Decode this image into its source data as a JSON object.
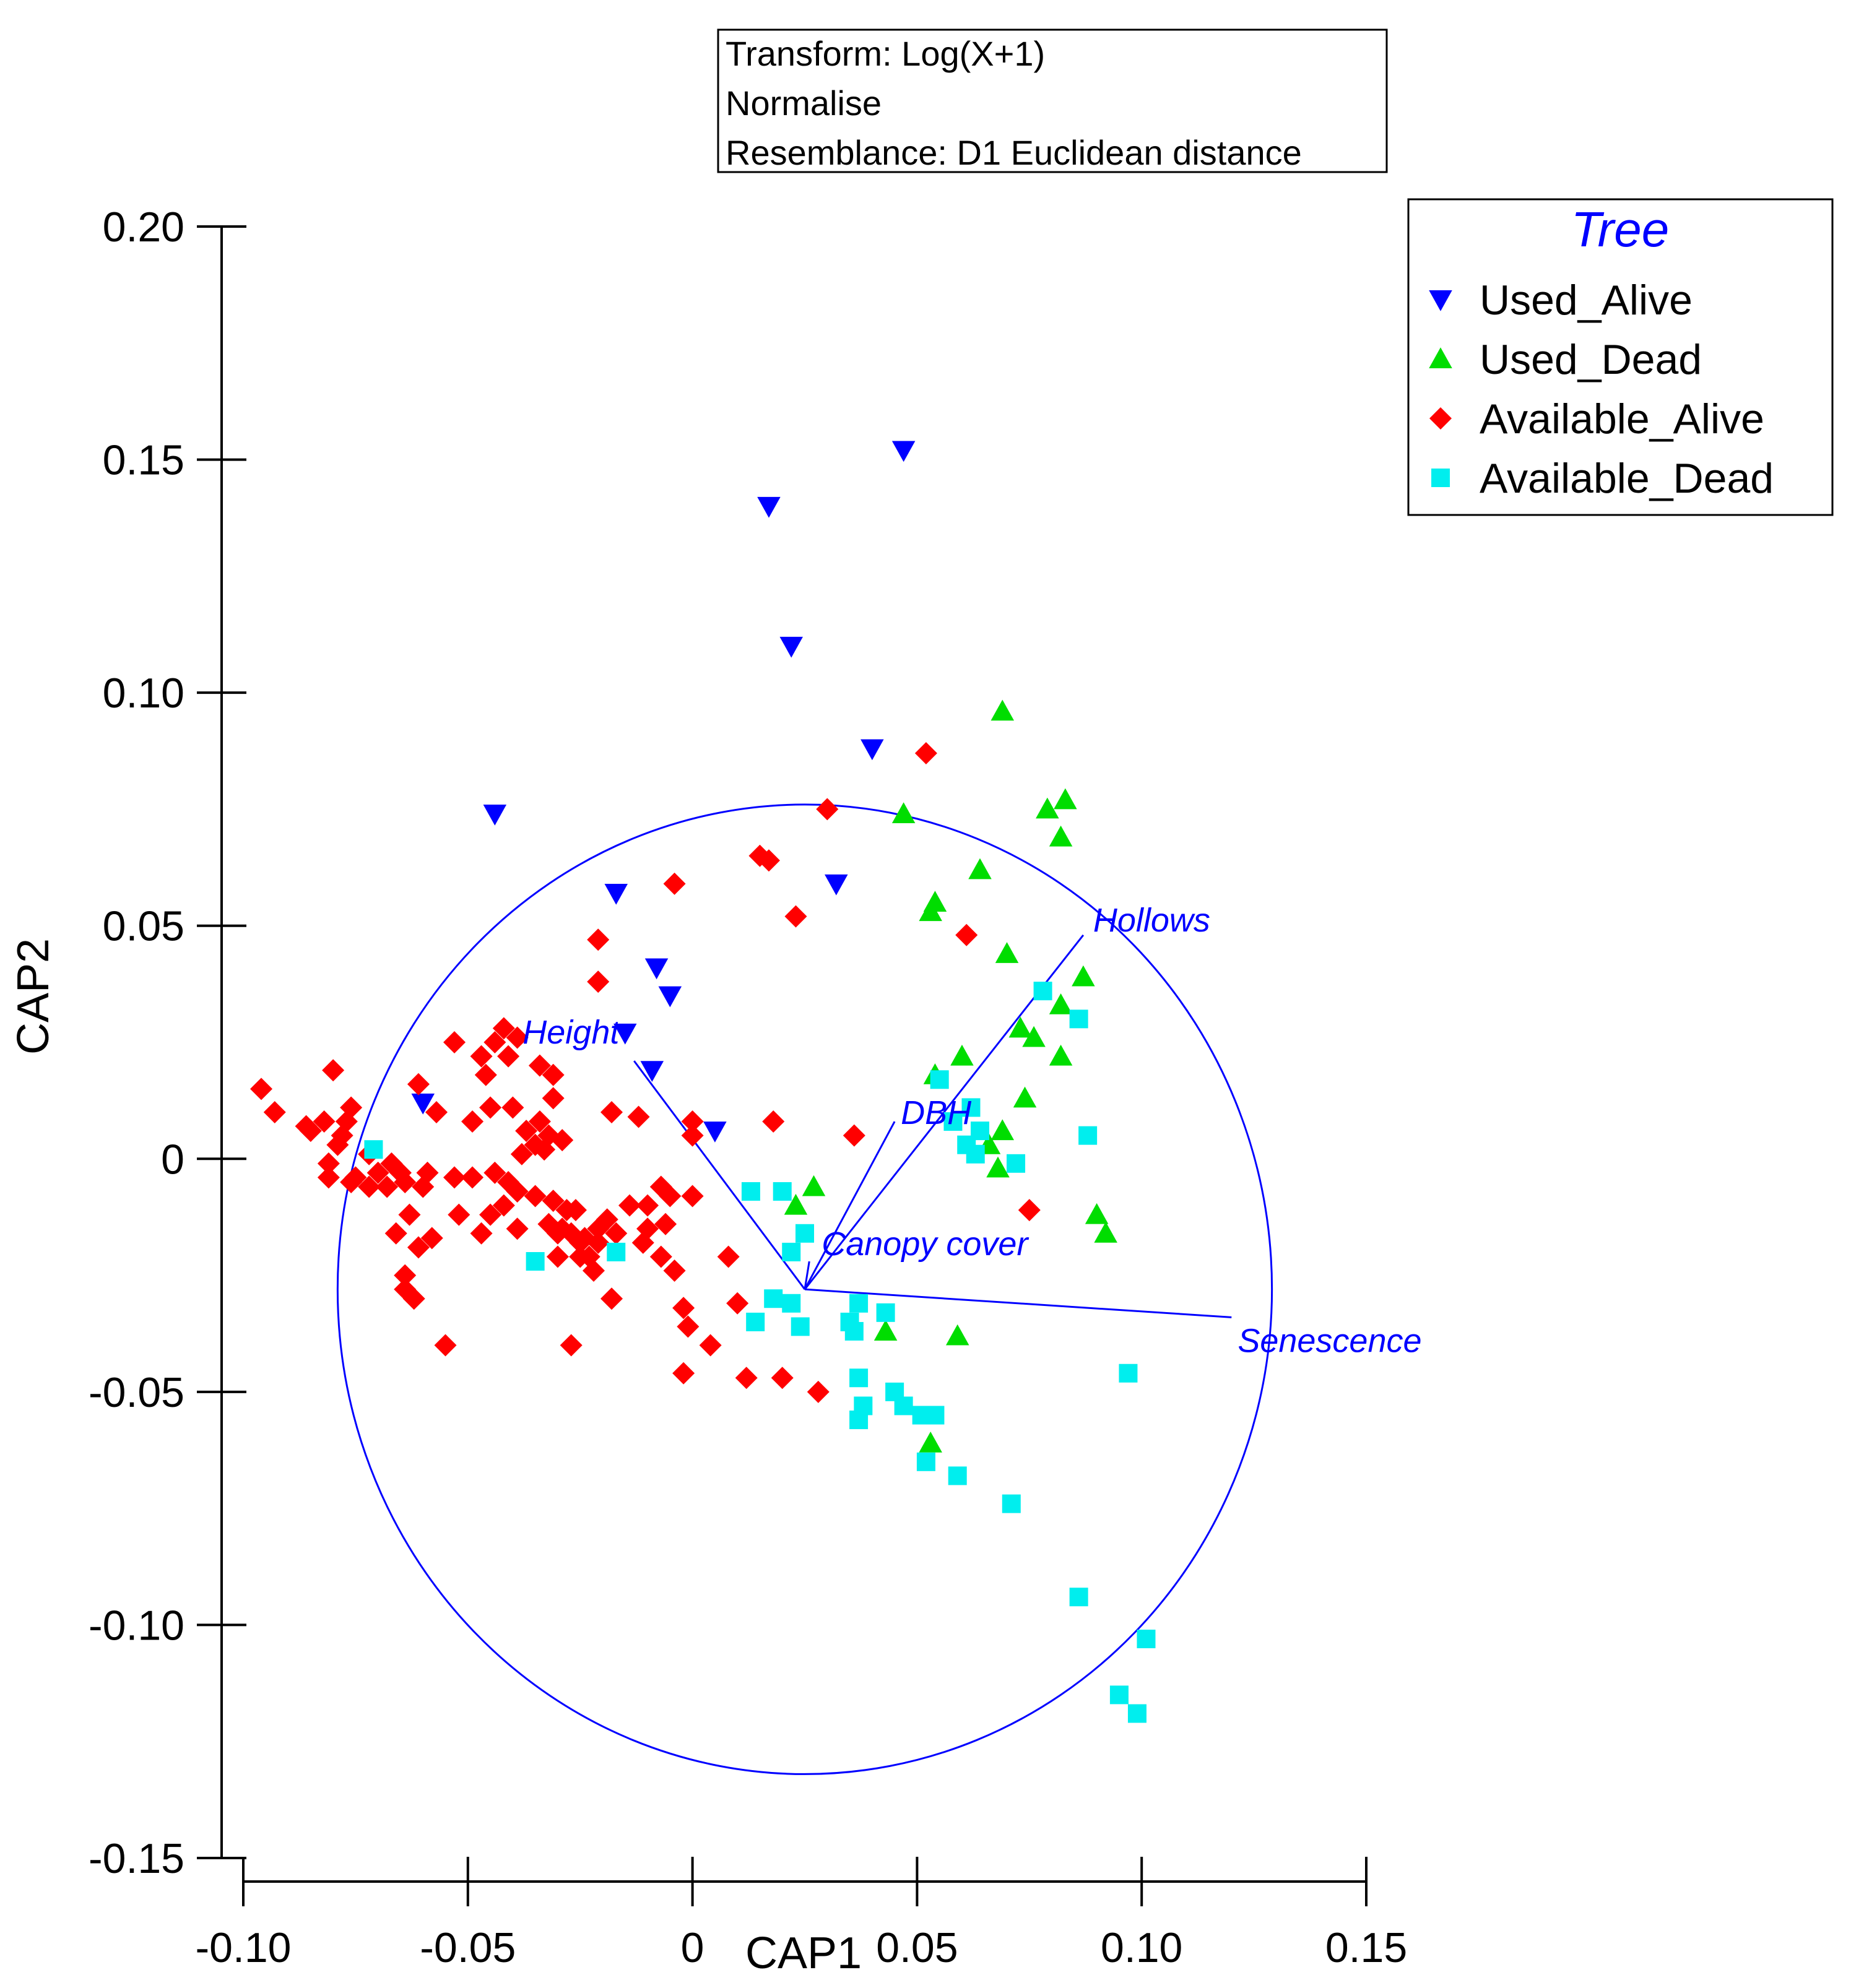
{
  "chart_data": {
    "type": "scatter",
    "xlabel": "CAP1",
    "ylabel": "CAP2",
    "xlim": [
      -0.1,
      0.15
    ],
    "ylim": [
      -0.15,
      0.2
    ],
    "x_ticks": [
      -0.1,
      -0.05,
      0,
      0.05,
      0.1,
      0.15
    ],
    "x_tick_labels": [
      "-0.10",
      "-0.05",
      "0",
      "0.05",
      "0.10",
      "0.15"
    ],
    "y_ticks": [
      0.2,
      0.15,
      0.1,
      0.05,
      0,
      -0.05,
      -0.1,
      -0.15
    ],
    "y_tick_labels": [
      "0.20",
      "0.15",
      "0.10",
      "0.05",
      "0",
      "-0.05",
      "-0.10",
      "-0.15"
    ],
    "info_box": [
      "Transform: Log(X+1)",
      "Normalise",
      "Resemblance: D1 Euclidean distance"
    ],
    "legend": {
      "title": "Tree",
      "title_color": "#0000ff",
      "position": "top-right"
    },
    "series": [
      {
        "name": "Used_Alive",
        "marker": "triangle-down",
        "color": "#0000ff",
        "points": [
          [
            0.047,
            0.152
          ],
          [
            0.017,
            0.14
          ],
          [
            0.022,
            0.11
          ],
          [
            0.04,
            0.088
          ],
          [
            -0.044,
            0.074
          ],
          [
            0.032,
            0.059
          ],
          [
            -0.017,
            0.057
          ],
          [
            -0.008,
            0.041
          ],
          [
            -0.005,
            0.035
          ],
          [
            -0.015,
            0.027
          ],
          [
            -0.009,
            0.019
          ],
          [
            -0.06,
            0.012
          ],
          [
            0.005,
            0.006
          ]
        ]
      },
      {
        "name": "Used_Dead",
        "marker": "triangle-up",
        "color": "#00dd00",
        "points": [
          [
            0.069,
            0.096
          ],
          [
            0.083,
            0.077
          ],
          [
            0.079,
            0.075
          ],
          [
            0.047,
            0.074
          ],
          [
            0.082,
            0.069
          ],
          [
            0.064,
            0.062
          ],
          [
            0.054,
            0.055
          ],
          [
            0.053,
            0.053
          ],
          [
            0.07,
            0.044
          ],
          [
            0.087,
            0.039
          ],
          [
            0.082,
            0.033
          ],
          [
            0.073,
            0.028
          ],
          [
            0.076,
            0.026
          ],
          [
            0.082,
            0.022
          ],
          [
            0.06,
            0.022
          ],
          [
            0.054,
            0.018
          ],
          [
            0.074,
            0.013
          ],
          [
            0.069,
            0.006
          ],
          [
            0.066,
            0.003
          ],
          [
            0.068,
            -0.002
          ],
          [
            0.027,
            -0.006
          ],
          [
            0.023,
            -0.01
          ],
          [
            0.09,
            -0.012
          ],
          [
            0.092,
            -0.016
          ],
          [
            0.043,
            -0.037
          ],
          [
            0.059,
            -0.038
          ],
          [
            0.053,
            -0.061
          ]
        ]
      },
      {
        "name": "Available_Alive",
        "marker": "diamond",
        "color": "#ff0000",
        "points": [
          [
            0.052,
            0.087
          ],
          [
            0.03,
            0.075
          ],
          [
            0.015,
            0.065
          ],
          [
            0.017,
            0.064
          ],
          [
            -0.004,
            0.059
          ],
          [
            0.023,
            0.052
          ],
          [
            0.061,
            0.048
          ],
          [
            -0.021,
            0.047
          ],
          [
            -0.021,
            0.038
          ],
          [
            -0.042,
            0.028
          ],
          [
            -0.044,
            0.025
          ],
          [
            -0.039,
            0.026
          ],
          [
            -0.041,
            0.022
          ],
          [
            -0.053,
            0.025
          ],
          [
            -0.047,
            0.022
          ],
          [
            -0.034,
            0.02
          ],
          [
            -0.031,
            0.018
          ],
          [
            -0.046,
            0.018
          ],
          [
            -0.031,
            0.013
          ],
          [
            -0.034,
            0.008
          ],
          [
            -0.049,
            0.008
          ],
          [
            -0.061,
            0.016
          ],
          [
            -0.057,
            0.01
          ],
          [
            -0.045,
            0.011
          ],
          [
            -0.04,
            0.011
          ],
          [
            -0.037,
            0.006
          ],
          [
            -0.032,
            0.005
          ],
          [
            -0.033,
            0.002
          ],
          [
            -0.035,
            0.003
          ],
          [
            -0.029,
            0.004
          ],
          [
            -0.038,
            0.001
          ],
          [
            -0.018,
            0.01
          ],
          [
            -0.012,
            0.009
          ],
          [
            0.0,
            0.008
          ],
          [
            0.0,
            0.005
          ],
          [
            0.018,
            0.008
          ],
          [
            0.036,
            0.005
          ],
          [
            -0.096,
            0.015
          ],
          [
            -0.093,
            0.01
          ],
          [
            -0.08,
            0.019
          ],
          [
            -0.086,
            0.007
          ],
          [
            -0.082,
            0.008
          ],
          [
            -0.085,
            0.006
          ],
          [
            -0.077,
            0.008
          ],
          [
            -0.076,
            0.011
          ],
          [
            -0.078,
            0.005
          ],
          [
            -0.079,
            0.003
          ],
          [
            -0.081,
            -0.001
          ],
          [
            -0.075,
            -0.004
          ],
          [
            -0.072,
            0.001
          ],
          [
            -0.07,
            -0.003
          ],
          [
            -0.067,
            -0.001
          ],
          [
            -0.081,
            -0.004
          ],
          [
            -0.076,
            -0.005
          ],
          [
            -0.072,
            -0.006
          ],
          [
            -0.068,
            -0.006
          ],
          [
            -0.065,
            -0.003
          ],
          [
            -0.064,
            -0.005
          ],
          [
            -0.06,
            -0.006
          ],
          [
            -0.059,
            -0.003
          ],
          [
            -0.053,
            -0.004
          ],
          [
            -0.049,
            -0.004
          ],
          [
            -0.044,
            -0.003
          ],
          [
            -0.041,
            -0.005
          ],
          [
            -0.039,
            -0.007
          ],
          [
            -0.035,
            -0.008
          ],
          [
            -0.031,
            -0.009
          ],
          [
            -0.026,
            -0.011
          ],
          [
            -0.019,
            -0.013
          ],
          [
            -0.017,
            -0.016
          ],
          [
            -0.021,
            -0.015
          ],
          [
            -0.032,
            -0.014
          ],
          [
            -0.029,
            -0.015
          ],
          [
            -0.027,
            -0.016
          ],
          [
            -0.024,
            -0.017
          ],
          [
            -0.021,
            -0.018
          ],
          [
            -0.014,
            -0.01
          ],
          [
            -0.01,
            -0.01
          ],
          [
            -0.007,
            -0.006
          ],
          [
            -0.005,
            -0.008
          ],
          [
            0.0,
            -0.008
          ],
          [
            -0.006,
            -0.014
          ],
          [
            -0.01,
            -0.015
          ],
          [
            -0.011,
            -0.018
          ],
          [
            -0.007,
            -0.021
          ],
          [
            -0.004,
            -0.024
          ],
          [
            -0.028,
            -0.011
          ],
          [
            -0.03,
            -0.016
          ],
          [
            -0.025,
            -0.021
          ],
          [
            -0.023,
            -0.021
          ],
          [
            -0.022,
            -0.024
          ],
          [
            -0.03,
            -0.021
          ],
          [
            -0.025,
            -0.018
          ],
          [
            -0.042,
            -0.01
          ],
          [
            -0.045,
            -0.012
          ],
          [
            -0.052,
            -0.012
          ],
          [
            -0.047,
            -0.016
          ],
          [
            -0.039,
            -0.015
          ],
          [
            -0.063,
            -0.012
          ],
          [
            -0.066,
            -0.016
          ],
          [
            -0.061,
            -0.019
          ],
          [
            -0.058,
            -0.017
          ],
          [
            -0.064,
            -0.025
          ],
          [
            -0.064,
            -0.028
          ],
          [
            -0.062,
            -0.03
          ],
          [
            -0.055,
            -0.04
          ],
          [
            -0.027,
            -0.04
          ],
          [
            -0.018,
            -0.03
          ],
          [
            -0.002,
            -0.032
          ],
          [
            -0.001,
            -0.036
          ],
          [
            0.004,
            -0.04
          ],
          [
            0.008,
            -0.021
          ],
          [
            0.01,
            -0.031
          ],
          [
            0.012,
            -0.047
          ],
          [
            0.02,
            -0.047
          ],
          [
            0.028,
            -0.05
          ],
          [
            -0.002,
            -0.046
          ],
          [
            0.075,
            -0.011
          ]
        ]
      },
      {
        "name": "Available_Dead",
        "marker": "square",
        "color": "#00eeee",
        "points": [
          [
            0.078,
            0.036
          ],
          [
            0.086,
            0.03
          ],
          [
            0.055,
            0.017
          ],
          [
            0.058,
            0.008
          ],
          [
            0.062,
            0.011
          ],
          [
            0.064,
            0.006
          ],
          [
            0.061,
            0.003
          ],
          [
            0.063,
            0.001
          ],
          [
            0.072,
            -0.001
          ],
          [
            0.088,
            0.005
          ],
          [
            -0.071,
            0.002
          ],
          [
            0.013,
            -0.007
          ],
          [
            0.02,
            -0.007
          ],
          [
            0.025,
            -0.016
          ],
          [
            0.022,
            -0.02
          ],
          [
            0.018,
            -0.03
          ],
          [
            0.022,
            -0.031
          ],
          [
            0.014,
            -0.035
          ],
          [
            0.024,
            -0.036
          ],
          [
            0.035,
            -0.035
          ],
          [
            0.037,
            -0.031
          ],
          [
            0.043,
            -0.033
          ],
          [
            0.036,
            -0.037
          ],
          [
            0.037,
            -0.047
          ],
          [
            0.038,
            -0.053
          ],
          [
            0.045,
            -0.05
          ],
          [
            0.047,
            -0.053
          ],
          [
            0.051,
            -0.055
          ],
          [
            0.037,
            -0.056
          ],
          [
            0.054,
            -0.055
          ],
          [
            0.052,
            -0.065
          ],
          [
            0.059,
            -0.068
          ],
          [
            0.071,
            -0.074
          ],
          [
            0.086,
            -0.094
          ],
          [
            0.097,
            -0.046
          ],
          [
            0.101,
            -0.103
          ],
          [
            0.095,
            -0.115
          ],
          [
            0.099,
            -0.119
          ],
          [
            -0.035,
            -0.022
          ],
          [
            -0.017,
            -0.02
          ]
        ]
      }
    ],
    "correlation_circle": {
      "center": [
        0.025,
        -0.028
      ],
      "radius": 0.104,
      "color": "#0000ff"
    },
    "vectors": [
      {
        "name": "Height",
        "end": [
          -0.013,
          0.021
        ]
      },
      {
        "name": "DBH",
        "end": [
          0.045,
          0.008
        ]
      },
      {
        "name": "Hollows",
        "end": [
          0.087,
          0.048
        ]
      },
      {
        "name": "Canopy cover",
        "end": [
          0.026,
          -0.022
        ]
      },
      {
        "name": "Senescence",
        "end": [
          0.12,
          -0.034
        ]
      }
    ],
    "vector_color": "#0000ff"
  }
}
